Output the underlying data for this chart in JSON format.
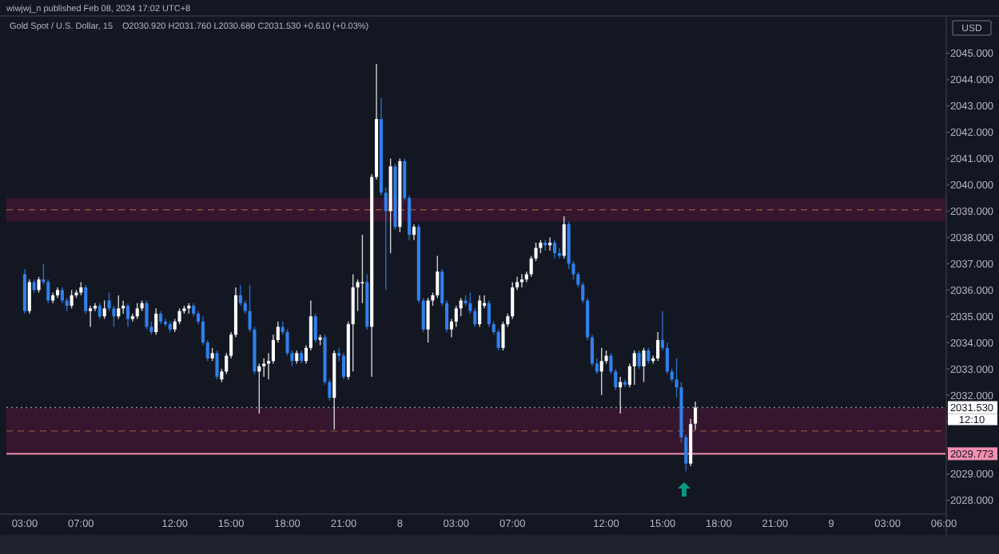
{
  "chart_data": {
    "type": "candlestick",
    "title": "Gold Spot / U.S. Dollar, 15",
    "subtitle": "O2030.920 H2031.760 L2030.680 C2031.530 +0.610 (+0.03%)",
    "categories": [
      "03:00",
      null,
      null,
      null,
      null,
      null,
      null,
      null,
      null,
      null,
      null,
      null,
      "07:00",
      null,
      null,
      null,
      null,
      null,
      null,
      null,
      null,
      null,
      null,
      null,
      null,
      null,
      null,
      null,
      null,
      null,
      null,
      null,
      "12:00",
      null,
      null,
      null,
      null,
      null,
      null,
      null,
      null,
      null,
      null,
      null,
      "15:00",
      null,
      null,
      null,
      null,
      null,
      null,
      null,
      null,
      null,
      null,
      null,
      "18:00",
      null,
      null,
      null,
      null,
      null,
      null,
      null,
      null,
      null,
      null,
      null,
      "21:00",
      null,
      null,
      null,
      null,
      null,
      null,
      null,
      null,
      null,
      null,
      null,
      "8",
      null,
      null,
      null,
      null,
      null,
      null,
      null,
      null,
      null,
      null,
      null,
      "03:00",
      null,
      null,
      null,
      null,
      null,
      null,
      null,
      null,
      null,
      null,
      null,
      "07:00",
      null,
      null,
      null,
      null,
      null,
      null,
      null,
      null,
      null,
      null,
      null,
      null,
      null,
      null,
      null,
      null,
      null,
      null,
      null,
      "12:00",
      null,
      null,
      null,
      null,
      null,
      null,
      null,
      null,
      null,
      null,
      null,
      "15:00",
      null,
      null,
      null,
      null,
      null,
      null,
      null,
      null,
      null,
      null,
      null,
      "18:00",
      null,
      null,
      null,
      null,
      null,
      null,
      null,
      null,
      null,
      null,
      null,
      "21:00",
      null,
      null,
      null,
      null,
      null,
      null,
      null,
      null,
      null,
      null,
      null,
      "9",
      null,
      null,
      null,
      null,
      null,
      null,
      null,
      null,
      null,
      null,
      null,
      "03:00",
      null,
      null,
      null,
      null,
      null,
      null,
      null,
      null,
      null,
      null,
      null,
      "06:00"
    ],
    "ohlc": [
      [
        2036.6,
        2036.8,
        2035.1,
        2035.2
      ],
      [
        2035.2,
        2036.4,
        2035.1,
        2036.3
      ],
      [
        2036.3,
        2036.4,
        2035.9,
        2036.0
      ],
      [
        2036.0,
        2036.5,
        2035.9,
        2036.4
      ],
      [
        2036.4,
        2037.0,
        2036.2,
        2036.3
      ],
      [
        2036.3,
        2036.4,
        2035.5,
        2035.6
      ],
      [
        2035.6,
        2035.9,
        2035.5,
        2035.8
      ],
      [
        2035.8,
        2036.1,
        2035.7,
        2036.0
      ],
      [
        2036.0,
        2036.1,
        2035.5,
        2035.6
      ],
      [
        2035.6,
        2035.7,
        2035.2,
        2035.4
      ],
      [
        2035.4,
        2036.0,
        2035.3,
        2035.8
      ],
      [
        2035.8,
        2036.0,
        2035.7,
        2035.9
      ],
      [
        2035.9,
        2036.3,
        2035.8,
        2036.1
      ],
      [
        2036.1,
        2036.2,
        2035.1,
        2035.2
      ],
      [
        2035.2,
        2035.4,
        2034.6,
        2035.3
      ],
      [
        2035.3,
        2035.5,
        2035.2,
        2035.4
      ],
      [
        2035.4,
        2035.5,
        2034.9,
        2035.0
      ],
      [
        2035.0,
        2035.6,
        2034.9,
        2035.3
      ],
      [
        2035.6,
        2035.9,
        2035.2,
        2035.3
      ],
      [
        2035.3,
        2035.4,
        2034.6,
        2035.0
      ],
      [
        2035.0,
        2035.8,
        2034.9,
        2035.3
      ],
      [
        2035.3,
        2035.6,
        2035.1,
        2035.4
      ],
      [
        2035.4,
        2035.5,
        2034.6,
        2034.9
      ],
      [
        2034.9,
        2035.1,
        2034.8,
        2035.0
      ],
      [
        2035.0,
        2035.5,
        2034.9,
        2035.3
      ],
      [
        2035.3,
        2035.6,
        2035.2,
        2035.5
      ],
      [
        2035.5,
        2035.6,
        2034.5,
        2034.6
      ],
      [
        2034.6,
        2034.8,
        2034.3,
        2034.4
      ],
      [
        2034.4,
        2035.3,
        2034.3,
        2035.1
      ],
      [
        2035.1,
        2035.2,
        2034.7,
        2034.8
      ],
      [
        2034.8,
        2034.9,
        2034.6,
        2034.7
      ],
      [
        2034.7,
        2034.8,
        2034.4,
        2034.5
      ],
      [
        2034.5,
        2034.9,
        2034.4,
        2034.8
      ],
      [
        2034.8,
        2035.3,
        2034.7,
        2035.2
      ],
      [
        2035.2,
        2035.4,
        2035.1,
        2035.3
      ],
      [
        2035.3,
        2035.5,
        2035.1,
        2035.4
      ],
      [
        2035.4,
        2035.5,
        2035.0,
        2035.1
      ],
      [
        2035.1,
        2035.2,
        2034.7,
        2034.8
      ],
      [
        2034.8,
        2035.0,
        2033.9,
        2034.0
      ],
      [
        2034.0,
        2034.1,
        2033.3,
        2033.4
      ],
      [
        2033.4,
        2033.8,
        2033.3,
        2033.6
      ],
      [
        2033.6,
        2033.7,
        2032.6,
        2032.7
      ],
      [
        2032.6,
        2033.0,
        2032.5,
        2032.9
      ],
      [
        2032.9,
        2033.6,
        2032.8,
        2033.5
      ],
      [
        2033.5,
        2034.4,
        2033.4,
        2034.3
      ],
      [
        2034.3,
        2036.1,
        2034.2,
        2035.8
      ],
      [
        2035.8,
        2036.2,
        2035.4,
        2035.5
      ],
      [
        2035.5,
        2035.6,
        2035.1,
        2035.2
      ],
      [
        2035.2,
        2036.2,
        2034.4,
        2034.5
      ],
      [
        2034.5,
        2034.6,
        2032.8,
        2032.9
      ],
      [
        2032.9,
        2033.2,
        2031.3,
        2033.1
      ],
      [
        2033.1,
        2033.4,
        2032.7,
        2033.2
      ],
      [
        2033.2,
        2033.6,
        2032.6,
        2033.3
      ],
      [
        2033.3,
        2034.3,
        2033.2,
        2034.1
      ],
      [
        2034.1,
        2034.8,
        2034.0,
        2034.6
      ],
      [
        2034.6,
        2034.8,
        2034.3,
        2034.4
      ],
      [
        2034.4,
        2034.5,
        2033.5,
        2033.6
      ],
      [
        2033.6,
        2033.7,
        2033.1,
        2033.3
      ],
      [
        2033.3,
        2033.7,
        2033.2,
        2033.6
      ],
      [
        2033.6,
        2033.7,
        2033.2,
        2033.3
      ],
      [
        2033.3,
        2033.9,
        2033.2,
        2033.8
      ],
      [
        2033.8,
        2035.6,
        2033.7,
        2035.0
      ],
      [
        2035.0,
        2035.1,
        2034.0,
        2034.1
      ],
      [
        2034.1,
        2034.3,
        2033.9,
        2034.2
      ],
      [
        2034.2,
        2034.3,
        2032.4,
        2032.5
      ],
      [
        2032.5,
        2032.6,
        2031.8,
        2031.9
      ],
      [
        2031.9,
        2033.7,
        2030.7,
        2033.6
      ],
      [
        2033.6,
        2033.8,
        2033.3,
        2033.5
      ],
      [
        2033.5,
        2033.6,
        2032.6,
        2032.7
      ],
      [
        2032.7,
        2034.8,
        2032.6,
        2034.7
      ],
      [
        2034.7,
        2036.6,
        2032.9,
        2036.1
      ],
      [
        2036.1,
        2036.4,
        2035.2,
        2036.3
      ],
      [
        2036.3,
        2038.1,
        2035.5,
        2036.3
      ],
      [
        2036.3,
        2036.6,
        2034.5,
        2034.6
      ],
      [
        2034.6,
        2040.4,
        2032.7,
        2040.3
      ],
      [
        2040.3,
        2044.6,
        2040.2,
        2042.5
      ],
      [
        2042.5,
        2043.3,
        2039.6,
        2039.7
      ],
      [
        2039.7,
        2039.9,
        2036.0,
        2039.0
      ],
      [
        2039.0,
        2041.0,
        2037.4,
        2040.7
      ],
      [
        2040.7,
        2040.8,
        2038.3,
        2038.4
      ],
      [
        2038.4,
        2041.0,
        2038.2,
        2040.9
      ],
      [
        2040.9,
        2041.0,
        2039.4,
        2039.5
      ],
      [
        2039.5,
        2039.6,
        2037.9,
        2038.1
      ],
      [
        2038.1,
        2038.5,
        2037.9,
        2038.4
      ],
      [
        2038.4,
        2038.5,
        2035.5,
        2035.6
      ],
      [
        2035.6,
        2035.7,
        2034.4,
        2034.5
      ],
      [
        2034.5,
        2035.7,
        2034.0,
        2035.6
      ],
      [
        2035.6,
        2035.9,
        2035.4,
        2035.8
      ],
      [
        2035.8,
        2037.3,
        2035.7,
        2036.7
      ],
      [
        2036.7,
        2036.8,
        2035.4,
        2035.5
      ],
      [
        2035.5,
        2035.6,
        2034.4,
        2034.5
      ],
      [
        2034.5,
        2034.9,
        2034.2,
        2034.8
      ],
      [
        2034.8,
        2035.4,
        2034.6,
        2035.3
      ],
      [
        2035.3,
        2035.7,
        2035.0,
        2035.6
      ],
      [
        2035.6,
        2035.8,
        2035.4,
        2035.5
      ],
      [
        2035.5,
        2035.9,
        2035.1,
        2035.2
      ],
      [
        2035.2,
        2035.3,
        2034.6,
        2034.7
      ],
      [
        2034.7,
        2035.8,
        2034.6,
        2035.6
      ],
      [
        2035.4,
        2035.8,
        2035.3,
        2035.5
      ],
      [
        2035.5,
        2035.6,
        2034.6,
        2034.7
      ],
      [
        2034.7,
        2034.8,
        2034.3,
        2034.4
      ],
      [
        2034.4,
        2034.5,
        2033.7,
        2033.8
      ],
      [
        2033.8,
        2034.8,
        2033.7,
        2034.7
      ],
      [
        2034.7,
        2035.1,
        2034.6,
        2035.0
      ],
      [
        2035.0,
        2036.3,
        2034.9,
        2036.1
      ],
      [
        2036.1,
        2036.5,
        2036.0,
        2036.3
      ],
      [
        2036.3,
        2036.6,
        2036.1,
        2036.4
      ],
      [
        2036.4,
        2036.7,
        2036.3,
        2036.6
      ],
      [
        2036.6,
        2037.3,
        2036.5,
        2037.2
      ],
      [
        2037.2,
        2037.8,
        2037.1,
        2037.6
      ],
      [
        2037.6,
        2037.9,
        2037.4,
        2037.8
      ],
      [
        2037.8,
        2037.9,
        2037.5,
        2037.7
      ],
      [
        2037.7,
        2038.0,
        2037.5,
        2037.8
      ],
      [
        2037.8,
        2037.9,
        2037.2,
        2037.4
      ],
      [
        2037.4,
        2037.6,
        2037.2,
        2037.3
      ],
      [
        2037.3,
        2038.8,
        2037.2,
        2038.5
      ],
      [
        2038.5,
        2038.6,
        2036.8,
        2037.0
      ],
      [
        2037.0,
        2037.1,
        2036.4,
        2036.6
      ],
      [
        2036.6,
        2036.7,
        2036.1,
        2036.2
      ],
      [
        2036.2,
        2036.3,
        2035.5,
        2035.6
      ],
      [
        2035.6,
        2035.7,
        2034.1,
        2034.2
      ],
      [
        2034.2,
        2034.3,
        2033.1,
        2033.2
      ],
      [
        2033.2,
        2033.4,
        2032.8,
        2032.9
      ],
      [
        2032.9,
        2033.8,
        2032.0,
        2033.3
      ],
      [
        2033.3,
        2033.7,
        2033.2,
        2033.5
      ],
      [
        2033.5,
        2033.6,
        2032.8,
        2032.9
      ],
      [
        2032.9,
        2033.0,
        2032.2,
        2032.3
      ],
      [
        2032.3,
        2032.7,
        2031.3,
        2032.5
      ],
      [
        2032.5,
        2032.6,
        2032.3,
        2032.4
      ],
      [
        2032.4,
        2033.2,
        2032.3,
        2033.1
      ],
      [
        2033.1,
        2033.7,
        2032.4,
        2033.6
      ],
      [
        2033.6,
        2033.7,
        2033.0,
        2033.1
      ],
      [
        2033.1,
        2033.8,
        2032.5,
        2033.7
      ],
      [
        2033.7,
        2033.8,
        2033.2,
        2033.3
      ],
      [
        2033.3,
        2033.5,
        2033.2,
        2033.4
      ],
      [
        2033.4,
        2034.4,
        2033.3,
        2034.1
      ],
      [
        2034.1,
        2035.2,
        2033.7,
        2033.8
      ],
      [
        2033.8,
        2034.0,
        2032.8,
        2032.9
      ],
      [
        2032.9,
        2033.0,
        2032.5,
        2032.6
      ],
      [
        2032.6,
        2033.4,
        2031.9,
        2032.3
      ],
      [
        2032.3,
        2032.5,
        2030.2,
        2030.4
      ],
      [
        2030.4,
        2030.5,
        2029.1,
        2029.4
      ],
      [
        2029.4,
        2031.1,
        2029.3,
        2030.9
      ],
      [
        2030.92,
        2031.76,
        2030.68,
        2031.53
      ],
      null,
      null,
      null,
      null,
      null,
      null,
      null,
      null,
      null,
      null,
      null,
      null,
      null,
      null,
      null,
      null,
      null,
      null,
      null,
      null,
      null,
      null,
      null,
      null,
      null,
      null,
      null,
      null,
      null,
      null,
      null,
      null,
      null,
      null,
      null,
      null,
      null,
      null,
      null,
      null,
      null,
      null,
      null,
      null,
      null,
      null,
      null,
      null,
      null,
      null,
      null,
      null,
      null
    ],
    "colors": [
      "#2f80ed",
      "#ffffff",
      "#2f80ed",
      "#ffffff",
      "#2f80ed",
      "#2f80ed",
      "#ffffff",
      "#ffffff",
      "#2f80ed",
      "#2f80ed",
      "#ffffff",
      "#ffffff",
      "#ffffff",
      "#2f80ed",
      "#ffffff",
      "#ffffff",
      "#2f80ed",
      "#ffffff",
      "#2f80ed",
      "#2f80ed",
      "#ffffff",
      "#ffffff",
      "#2f80ed",
      "#ffffff",
      "#ffffff",
      "#ffffff",
      "#2f80ed",
      "#2f80ed",
      "#ffffff",
      "#2f80ed",
      "#2f80ed",
      "#2f80ed",
      "#ffffff",
      "#ffffff",
      "#ffffff",
      "#ffffff",
      "#2f80ed",
      "#2f80ed",
      "#2f80ed",
      "#2f80ed",
      "#ffffff",
      "#2f80ed",
      "#ffffff",
      "#ffffff",
      "#ffffff",
      "#ffffff",
      "#2f80ed",
      "#2f80ed",
      "#2f80ed",
      "#2f80ed",
      "#ffffff",
      "#ffffff",
      "#ffffff",
      "#ffffff",
      "#ffffff",
      "#2f80ed",
      "#2f80ed",
      "#2f80ed",
      "#ffffff",
      "#2f80ed",
      "#ffffff",
      "#ffffff",
      "#2f80ed",
      "#ffffff",
      "#2f80ed",
      "#2f80ed",
      "#ffffff",
      "#2f80ed",
      "#2f80ed",
      "#ffffff",
      "#ffffff",
      "#ffffff",
      "#ffffff",
      "#2f80ed",
      "#ffffff",
      "#ffffff",
      "#2f80ed",
      "#2f80ed",
      "#ffffff",
      "#2f80ed",
      "#ffffff",
      "#2f80ed",
      "#2f80ed",
      "#ffffff",
      "#2f80ed",
      "#2f80ed",
      "#ffffff",
      "#ffffff",
      "#ffffff",
      "#2f80ed",
      "#2f80ed",
      "#ffffff",
      "#ffffff",
      "#ffffff",
      "#2f80ed",
      "#2f80ed",
      "#2f80ed",
      "#ffffff",
      "#ffffff",
      "#2f80ed",
      "#2f80ed",
      "#2f80ed",
      "#ffffff",
      "#ffffff",
      "#ffffff",
      "#ffffff",
      "#ffffff",
      "#ffffff",
      "#ffffff",
      "#ffffff",
      "#ffffff",
      "#2f80ed",
      "#ffffff",
      "#2f80ed",
      "#2f80ed",
      "#ffffff",
      "#2f80ed",
      "#2f80ed",
      "#2f80ed",
      "#2f80ed",
      "#2f80ed",
      "#2f80ed",
      "#2f80ed",
      "#ffffff",
      "#ffffff",
      "#2f80ed",
      "#2f80ed",
      "#ffffff",
      "#2f80ed",
      "#ffffff",
      "#ffffff",
      "#2f80ed",
      "#ffffff",
      "#2f80ed",
      "#ffffff",
      "#ffffff",
      "#2f80ed",
      "#2f80ed",
      "#2f80ed",
      "#2f80ed",
      "#2f80ed",
      "#2f80ed",
      "#ffffff",
      "#ffffff",
      null,
      null,
      null,
      null,
      null,
      null,
      null,
      null,
      null,
      null,
      null,
      null,
      null,
      null,
      null,
      null,
      null,
      null,
      null,
      null,
      null,
      null,
      null,
      null,
      null,
      null,
      null,
      null,
      null,
      null,
      null,
      null,
      null,
      null,
      null,
      null,
      null,
      null,
      null,
      null,
      null,
      null,
      null,
      null,
      null,
      null,
      null,
      null,
      null,
      null,
      null,
      null,
      null
    ],
    "ylim": [
      2027.6,
      2046.3
    ],
    "yticks": [
      {
        "value": 2028,
        "label": "2028.000"
      },
      {
        "value": 2029,
        "label": "2029.000"
      },
      {
        "value": 2030,
        "label": null
      },
      {
        "value": 2031,
        "label": null
      },
      {
        "value": 2032,
        "label": "2032.000"
      },
      {
        "value": 2033,
        "label": "2033.000"
      },
      {
        "value": 2034,
        "label": "2034.000"
      },
      {
        "value": 2035,
        "label": "2035.000"
      },
      {
        "value": 2036,
        "label": "2036.000"
      },
      {
        "value": 2037,
        "label": "2037.000"
      },
      {
        "value": 2038,
        "label": "2038.000"
      },
      {
        "value": 2039,
        "label": "2039.000"
      },
      {
        "value": 2040,
        "label": "2040.000"
      },
      {
        "value": 2041,
        "label": "2041.000"
      },
      {
        "value": 2042,
        "label": "2042.000"
      },
      {
        "value": 2043,
        "label": "2043.000"
      },
      {
        "value": 2044,
        "label": "2044.000"
      },
      {
        "value": 2045,
        "label": "2045.000"
      }
    ],
    "bands": [
      {
        "axis": "y",
        "from": 2038.6,
        "to": 2039.5,
        "color": "#3b1630"
      },
      {
        "axis": "y",
        "from": 2029.773,
        "to": 2031.5,
        "color": "#3b1630"
      }
    ],
    "ref_lines": [
      {
        "axis": "y",
        "value": 2039.05,
        "color": "#8a5040",
        "line_style": "dashed"
      },
      {
        "axis": "y",
        "value": 2030.64,
        "color": "#8a5040",
        "line_style": "dashed"
      },
      {
        "axis": "y",
        "value": 2029.773,
        "label": "2029.773",
        "color": "#f48fb1",
        "line_style": "solid"
      },
      {
        "axis": "y",
        "value": 2031.53,
        "label": "2031.530",
        "color": "#ffffff",
        "line_style": "dotted"
      }
    ],
    "annotations": [
      "wiwjwj_n published Feb 08, 2024 17:02 UTC+8",
      "USD",
      "12:10"
    ]
  }
}
